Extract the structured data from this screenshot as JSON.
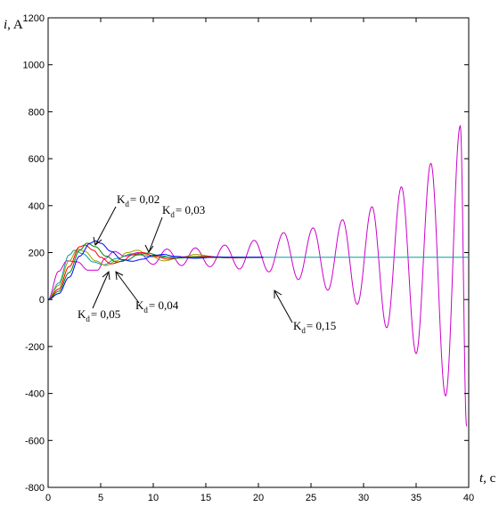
{
  "chart_data": {
    "type": "line",
    "xlabel": "t",
    "xunit": ", c",
    "ylabel": "i",
    "yunit": ", A",
    "xlim": [
      0,
      40
    ],
    "ylim": [
      -800,
      1200
    ],
    "xticks": [
      0,
      5,
      10,
      15,
      20,
      25,
      30,
      35,
      40
    ],
    "yticks": [
      -800,
      -600,
      -400,
      -200,
      0,
      200,
      400,
      600,
      800,
      1000,
      1200
    ],
    "grid": false,
    "legend": "none",
    "steady_state": 180,
    "series": [
      {
        "name": "Kd = 0,02",
        "color": "#0000ff",
        "t_end": 20.5,
        "samples": [
          [
            0,
            0
          ],
          [
            1,
            25
          ],
          [
            2,
            95
          ],
          [
            3,
            185
          ],
          [
            4,
            240
          ],
          [
            4.5,
            250
          ],
          [
            5,
            240
          ],
          [
            6,
            205
          ],
          [
            7,
            170
          ],
          [
            8,
            163
          ],
          [
            9,
            172
          ],
          [
            10,
            188
          ],
          [
            11,
            192
          ],
          [
            12,
            184
          ],
          [
            14,
            176
          ],
          [
            16,
            181
          ],
          [
            18,
            180
          ],
          [
            20.5,
            180
          ]
        ]
      },
      {
        "name": "Kd = 0,03",
        "color": "#008000",
        "t_end": 20.5,
        "samples": [
          [
            0,
            0
          ],
          [
            1,
            35
          ],
          [
            2,
            115
          ],
          [
            3,
            210
          ],
          [
            3.7,
            240
          ],
          [
            4.5,
            225
          ],
          [
            5.5,
            185
          ],
          [
            6.5,
            160
          ],
          [
            7.5,
            168
          ],
          [
            8.5,
            190
          ],
          [
            9.5,
            198
          ],
          [
            10.5,
            188
          ],
          [
            12,
            176
          ],
          [
            14,
            182
          ],
          [
            16,
            179
          ],
          [
            18,
            180
          ],
          [
            20.5,
            180
          ]
        ]
      },
      {
        "name": "Kd = 0,04",
        "color": "#ff0000",
        "t_end": 20.5,
        "samples": [
          [
            0,
            0
          ],
          [
            1,
            45
          ],
          [
            2,
            140
          ],
          [
            3,
            225
          ],
          [
            3.5,
            232
          ],
          [
            4.3,
            210
          ],
          [
            5,
            180
          ],
          [
            6,
            152
          ],
          [
            7,
            162
          ],
          [
            8,
            190
          ],
          [
            9,
            200
          ],
          [
            10,
            186
          ],
          [
            11.5,
            172
          ],
          [
            13,
            182
          ],
          [
            15,
            184
          ],
          [
            17,
            178
          ],
          [
            20.5,
            180
          ]
        ]
      },
      {
        "name": "Kd = 0,05",
        "color": "#a0a000",
        "t_end": 20.5,
        "samples": [
          [
            0,
            0
          ],
          [
            1,
            60
          ],
          [
            2,
            165
          ],
          [
            2.8,
            215
          ],
          [
            3.5,
            205
          ],
          [
            4.5,
            165
          ],
          [
            5.5,
            145
          ],
          [
            6.5,
            165
          ],
          [
            7.5,
            200
          ],
          [
            8.5,
            210
          ],
          [
            9.5,
            190
          ],
          [
            11,
            165
          ],
          [
            12.5,
            178
          ],
          [
            14,
            192
          ],
          [
            16,
            182
          ],
          [
            18,
            178
          ],
          [
            20.5,
            180
          ]
        ]
      },
      {
        "name": "Kd = 0,15",
        "color": "#cc00cc",
        "t_end": 39.8,
        "samples": [
          [
            0,
            0
          ],
          [
            1,
            120
          ],
          [
            1.8,
            165
          ],
          [
            2.8,
            160
          ],
          [
            3.8,
            125
          ],
          [
            4.7,
            125
          ],
          [
            5.4,
            175
          ],
          [
            6.3,
            205
          ],
          [
            7.3,
            185
          ],
          [
            8.6,
            200
          ],
          [
            10,
            150
          ],
          [
            11.3,
            215
          ],
          [
            12.7,
            145
          ],
          [
            14,
            220
          ],
          [
            15.4,
            140
          ],
          [
            16.8,
            232
          ],
          [
            18.2,
            130
          ],
          [
            19.6,
            252
          ],
          [
            21,
            118
          ],
          [
            22.4,
            285
          ],
          [
            23.8,
            85
          ],
          [
            25.2,
            305
          ],
          [
            26.6,
            40
          ],
          [
            28,
            340
          ],
          [
            29.4,
            -20
          ],
          [
            30.8,
            395
          ],
          [
            32.2,
            -120
          ],
          [
            33.6,
            480
          ],
          [
            35,
            -230
          ],
          [
            36.4,
            580
          ],
          [
            37.8,
            -410
          ],
          [
            39.2,
            740
          ],
          [
            39.8,
            -540
          ]
        ]
      },
      {
        "name": "",
        "color": "#00a0a0",
        "t_end": 40,
        "samples": [
          [
            0,
            0
          ],
          [
            1,
            70
          ],
          [
            2,
            190
          ],
          [
            2.5,
            210
          ],
          [
            3.3,
            195
          ],
          [
            4.3,
            160
          ],
          [
            5.3,
            148
          ],
          [
            6.5,
            175
          ],
          [
            8,
            195
          ],
          [
            10,
            182
          ],
          [
            13,
            178
          ],
          [
            16,
            181
          ],
          [
            20,
            180
          ],
          [
            40,
            180
          ]
        ]
      }
    ],
    "annotations": [
      {
        "id": "kd-002",
        "base": "K",
        "sub": "d",
        "value": "= 0,02"
      },
      {
        "id": "kd-003",
        "base": "K",
        "sub": "d",
        "value": "= 0,03"
      },
      {
        "id": "kd-004",
        "base": "K",
        "sub": "d",
        "value": "= 0,04"
      },
      {
        "id": "kd-005",
        "base": "K",
        "sub": "d",
        "value": "= 0,05"
      },
      {
        "id": "kd-015",
        "base": "K",
        "sub": "d",
        "value": "= 0,15"
      }
    ]
  }
}
